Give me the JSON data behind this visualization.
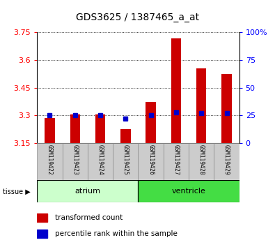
{
  "title": "GDS3625 / 1387465_a_at",
  "samples": [
    "GSM119422",
    "GSM119423",
    "GSM119424",
    "GSM119425",
    "GSM119426",
    "GSM119427",
    "GSM119428",
    "GSM119429"
  ],
  "transformed_count": [
    3.285,
    3.305,
    3.305,
    3.225,
    3.375,
    3.715,
    3.555,
    3.525
  ],
  "percentile_rank": [
    25,
    25,
    25,
    22,
    25,
    28,
    27,
    27
  ],
  "ymin": 3.15,
  "ymax": 3.75,
  "yticks": [
    3.15,
    3.3,
    3.45,
    3.6,
    3.75
  ],
  "ytick_labels": [
    "3.15",
    "3.3",
    "3.45",
    "3.6",
    "3.75"
  ],
  "right_yticks": [
    0,
    25,
    50,
    75,
    100
  ],
  "right_ytick_labels": [
    "0",
    "25",
    "50",
    "75",
    "100%"
  ],
  "bar_color": "#cc0000",
  "dot_color": "#0000cc",
  "baseline": 3.15,
  "atrium_color": "#ccffcc",
  "ventricle_color": "#44dd44",
  "sample_bg": "#cccccc",
  "bar_width": 0.4,
  "atrium_samples": [
    0,
    1,
    2,
    3
  ],
  "ventricle_samples": [
    4,
    5,
    6,
    7
  ]
}
